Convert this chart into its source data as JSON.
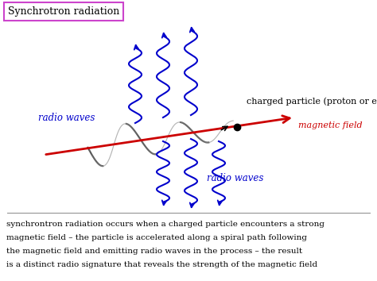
{
  "title": "Synchrotron radiation",
  "title_box_color": "#cc44cc",
  "bg_color": "#ffffff",
  "description_lines": [
    "synchrontron radiation occurs when a charged particle encounters a strong",
    "magnetic field – the particle is accelerated along a spiral path following",
    "the magnetic field and emitting radio waves in the process – the result",
    "is a distinct radio signature that reveals the strength of the magnetic field"
  ],
  "radio_waves_label_left": "radio waves",
  "radio_waves_label_right": "radio waves",
  "charged_particle_label": "charged particle (proton or electron)",
  "magnetic_field_label": "magnetic field",
  "blue_color": "#0000cc",
  "red_color": "#cc0000",
  "black_color": "#111111",
  "spiral_color": "#333333",
  "figsize": [
    4.74,
    3.54
  ],
  "dpi": 100
}
